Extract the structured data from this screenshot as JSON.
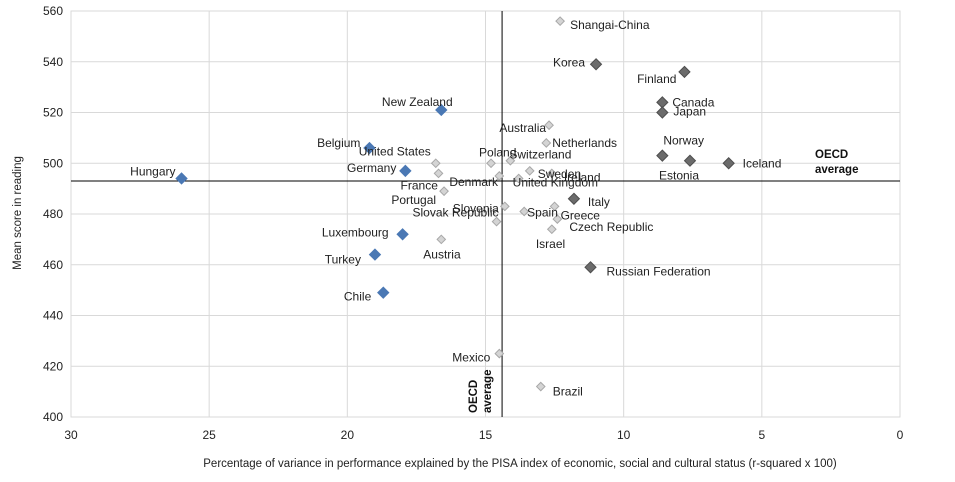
{
  "chart_data": {
    "type": "scatter",
    "title": "",
    "xlabel": "Percentage of variance in performance explained by the PISA index of economic, social and cultural status (r-squared x 100)",
    "ylabel": "Mean score in reading",
    "xlim": [
      30,
      0
    ],
    "ylim": [
      400,
      560
    ],
    "x_ticks": [
      30,
      25,
      20,
      15,
      10,
      5,
      0
    ],
    "y_ticks": [
      400,
      420,
      440,
      460,
      480,
      500,
      520,
      540,
      560
    ],
    "grid": true,
    "oecd_average": {
      "x": 14.4,
      "y": 493,
      "x_label": "OECD average",
      "y_label": "OECD average"
    },
    "colors": {
      "blue": "#4a78b4",
      "dark": "#6b6b6b",
      "light": "#d4d4d4",
      "light_stroke": "#a8a8a8",
      "avg_line": "#000000",
      "grid": "#d9d9d9"
    },
    "series": [
      {
        "name": "Blue",
        "style": "blue",
        "points": [
          {
            "label": "Hungary",
            "x": 26.0,
            "y": 494
          },
          {
            "label": "New Zealand",
            "x": 16.6,
            "y": 521
          },
          {
            "label": "Belgium",
            "x": 19.2,
            "y": 506
          },
          {
            "label": "Germany",
            "x": 17.9,
            "y": 497
          },
          {
            "label": "Luxembourg",
            "x": 18.0,
            "y": 472
          },
          {
            "label": "Turkey",
            "x": 19.0,
            "y": 464
          },
          {
            "label": "Chile",
            "x": 18.7,
            "y": 449
          }
        ]
      },
      {
        "name": "Dark",
        "style": "dark",
        "points": [
          {
            "label": "Korea",
            "x": 11.0,
            "y": 539
          },
          {
            "label": "Finland",
            "x": 7.8,
            "y": 536
          },
          {
            "label": "Canada",
            "x": 8.6,
            "y": 524
          },
          {
            "label": "Japan",
            "x": 8.6,
            "y": 520
          },
          {
            "label": "Norway",
            "x": 8.6,
            "y": 503
          },
          {
            "label": "Estonia",
            "x": 7.6,
            "y": 501
          },
          {
            "label": "Iceland",
            "x": 6.2,
            "y": 500
          },
          {
            "label": "Italy",
            "x": 11.8,
            "y": 486
          },
          {
            "label": "Russian Federation",
            "x": 11.2,
            "y": 459
          }
        ]
      },
      {
        "name": "Light",
        "style": "light",
        "points": [
          {
            "label": "Shangai-China",
            "x": 12.3,
            "y": 556
          },
          {
            "label": "Australia",
            "x": 12.7,
            "y": 515
          },
          {
            "label": "Netherlands",
            "x": 12.8,
            "y": 508
          },
          {
            "label": "United States",
            "x": 16.8,
            "y": 500
          },
          {
            "label": "Poland",
            "x": 14.8,
            "y": 500
          },
          {
            "label": "Switzerland",
            "x": 14.1,
            "y": 501
          },
          {
            "label": "Sweden",
            "x": 13.4,
            "y": 497
          },
          {
            "label": "France",
            "x": 16.7,
            "y": 496
          },
          {
            "label": "Denmark",
            "x": 14.5,
            "y": 495
          },
          {
            "label": "Ireland",
            "x": 12.6,
            "y": 496
          },
          {
            "label": "United Kingdom",
            "x": 13.8,
            "y": 494
          },
          {
            "label": "Portugal",
            "x": 16.5,
            "y": 489
          },
          {
            "label": "Slovenia",
            "x": 14.3,
            "y": 483
          },
          {
            "label": "Greece",
            "x": 12.5,
            "y": 483
          },
          {
            "label": "Spain",
            "x": 13.6,
            "y": 481
          },
          {
            "label": "Czech Republic",
            "x": 12.4,
            "y": 478
          },
          {
            "label": "Slovak Republic",
            "x": 14.6,
            "y": 477
          },
          {
            "label": "Israel",
            "x": 12.6,
            "y": 474
          },
          {
            "label": "Austria",
            "x": 16.6,
            "y": 470
          },
          {
            "label": "Mexico",
            "x": 14.5,
            "y": 425
          },
          {
            "label": "Brazil",
            "x": 13.0,
            "y": 412
          }
        ]
      }
    ]
  }
}
